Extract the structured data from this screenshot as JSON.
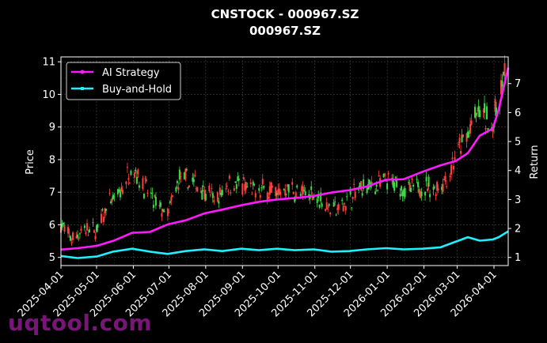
{
  "chart_data": {
    "type": "line",
    "title": "CNSTOCK - 000967.SZ",
    "subtitle": "000967.SZ",
    "ylabel": "Price",
    "y2label": "Return",
    "ylim": [
      4.75,
      11.15
    ],
    "y2lim": [
      0.72,
      7.92
    ],
    "xlim": [
      "2025-04-01",
      "2026-04-13"
    ],
    "yticks": [
      5,
      6,
      7,
      8,
      9,
      10,
      11
    ],
    "y2ticks": [
      1,
      2,
      3,
      4,
      5,
      6,
      7
    ],
    "xticks": [
      "2025-04-01",
      "2025-05-01",
      "2025-06-01",
      "2025-07-01",
      "2025-08-01",
      "2025-09-01",
      "2025-10-01",
      "2025-11-01",
      "2025-12-01",
      "2026-01-01",
      "2026-02-01",
      "2026-03-01",
      "2026-04-01"
    ],
    "grid": true,
    "legend_position": "top-left",
    "colors": {
      "up": "#3ddc47",
      "down": "#ff4040",
      "strategy": "#ff1aff",
      "buyhold": "#1ff0ff",
      "background": "#000000",
      "grid": "#444444"
    },
    "price_series": [
      [
        "2025-04-01",
        6.0
      ],
      [
        "2025-04-10",
        5.55
      ],
      [
        "2025-04-20",
        5.85
      ],
      [
        "2025-05-01",
        5.8
      ],
      [
        "2025-05-10",
        6.6
      ],
      [
        "2025-05-20",
        6.9
      ],
      [
        "2025-05-31",
        7.8
      ],
      [
        "2025-06-10",
        7.2
      ],
      [
        "2025-06-20",
        6.6
      ],
      [
        "2025-06-30",
        6.3
      ],
      [
        "2025-07-10",
        7.4
      ],
      [
        "2025-07-20",
        7.3
      ],
      [
        "2025-07-31",
        7.1
      ],
      [
        "2025-08-10",
        6.7
      ],
      [
        "2025-08-20",
        7.3
      ],
      [
        "2025-08-31",
        7.2
      ],
      [
        "2025-09-10",
        7.0
      ],
      [
        "2025-09-20",
        7.1
      ],
      [
        "2025-09-30",
        6.95
      ],
      [
        "2025-10-10",
        7.15
      ],
      [
        "2025-10-20",
        6.9
      ],
      [
        "2025-10-31",
        7.0
      ],
      [
        "2025-11-10",
        6.6
      ],
      [
        "2025-11-20",
        6.45
      ],
      [
        "2025-11-30",
        6.8
      ],
      [
        "2025-12-10",
        7.1
      ],
      [
        "2025-12-20",
        7.2
      ],
      [
        "2025-12-31",
        7.3
      ],
      [
        "2026-01-10",
        7.2
      ],
      [
        "2026-01-20",
        7.05
      ],
      [
        "2026-01-31",
        7.2
      ],
      [
        "2026-02-10",
        7.1
      ],
      [
        "2026-02-20",
        7.4
      ],
      [
        "2026-02-28",
        8.1
      ],
      [
        "2026-03-10",
        8.8
      ],
      [
        "2026-03-20",
        9.5
      ],
      [
        "2026-03-31",
        9.0
      ],
      [
        "2026-04-10",
        10.7
      ]
    ],
    "series": [
      {
        "name": "AI Strategy",
        "axis": "right",
        "points": [
          [
            "2025-04-01",
            1.27
          ],
          [
            "2025-04-15",
            1.32
          ],
          [
            "2025-05-01",
            1.4
          ],
          [
            "2025-05-15",
            1.57
          ],
          [
            "2025-05-31",
            1.85
          ],
          [
            "2025-06-15",
            1.88
          ],
          [
            "2025-06-30",
            2.14
          ],
          [
            "2025-07-15",
            2.28
          ],
          [
            "2025-07-31",
            2.52
          ],
          [
            "2025-08-15",
            2.65
          ],
          [
            "2025-08-31",
            2.8
          ],
          [
            "2025-09-15",
            2.92
          ],
          [
            "2025-09-30",
            3.0
          ],
          [
            "2025-10-15",
            3.05
          ],
          [
            "2025-10-31",
            3.12
          ],
          [
            "2025-11-15",
            3.24
          ],
          [
            "2025-11-30",
            3.32
          ],
          [
            "2025-12-15",
            3.45
          ],
          [
            "2025-12-31",
            3.68
          ],
          [
            "2026-01-15",
            3.7
          ],
          [
            "2026-01-31",
            3.96
          ],
          [
            "2026-02-15",
            4.18
          ],
          [
            "2026-02-28",
            4.33
          ],
          [
            "2026-03-10",
            4.6
          ],
          [
            "2026-03-20",
            5.2
          ],
          [
            "2026-03-31",
            5.45
          ],
          [
            "2026-04-05",
            6.1
          ],
          [
            "2026-04-13",
            7.55
          ]
        ]
      },
      {
        "name": "Buy-and-Hold",
        "axis": "right",
        "points": [
          [
            "2025-04-01",
            1.05
          ],
          [
            "2025-04-15",
            0.98
          ],
          [
            "2025-05-01",
            1.03
          ],
          [
            "2025-05-15",
            1.2
          ],
          [
            "2025-05-31",
            1.3
          ],
          [
            "2025-06-15",
            1.2
          ],
          [
            "2025-06-30",
            1.12
          ],
          [
            "2025-07-15",
            1.22
          ],
          [
            "2025-07-31",
            1.28
          ],
          [
            "2025-08-15",
            1.22
          ],
          [
            "2025-08-31",
            1.3
          ],
          [
            "2025-09-15",
            1.25
          ],
          [
            "2025-09-30",
            1.3
          ],
          [
            "2025-10-15",
            1.25
          ],
          [
            "2025-10-31",
            1.28
          ],
          [
            "2025-11-15",
            1.2
          ],
          [
            "2025-11-30",
            1.22
          ],
          [
            "2025-12-15",
            1.28
          ],
          [
            "2025-12-31",
            1.32
          ],
          [
            "2026-01-15",
            1.28
          ],
          [
            "2026-01-31",
            1.3
          ],
          [
            "2026-02-15",
            1.35
          ],
          [
            "2026-02-28",
            1.55
          ],
          [
            "2026-03-10",
            1.7
          ],
          [
            "2026-03-20",
            1.58
          ],
          [
            "2026-03-31",
            1.62
          ],
          [
            "2026-04-05",
            1.7
          ],
          [
            "2026-04-13",
            1.9
          ]
        ]
      }
    ]
  },
  "watermark": "uqtool.com"
}
